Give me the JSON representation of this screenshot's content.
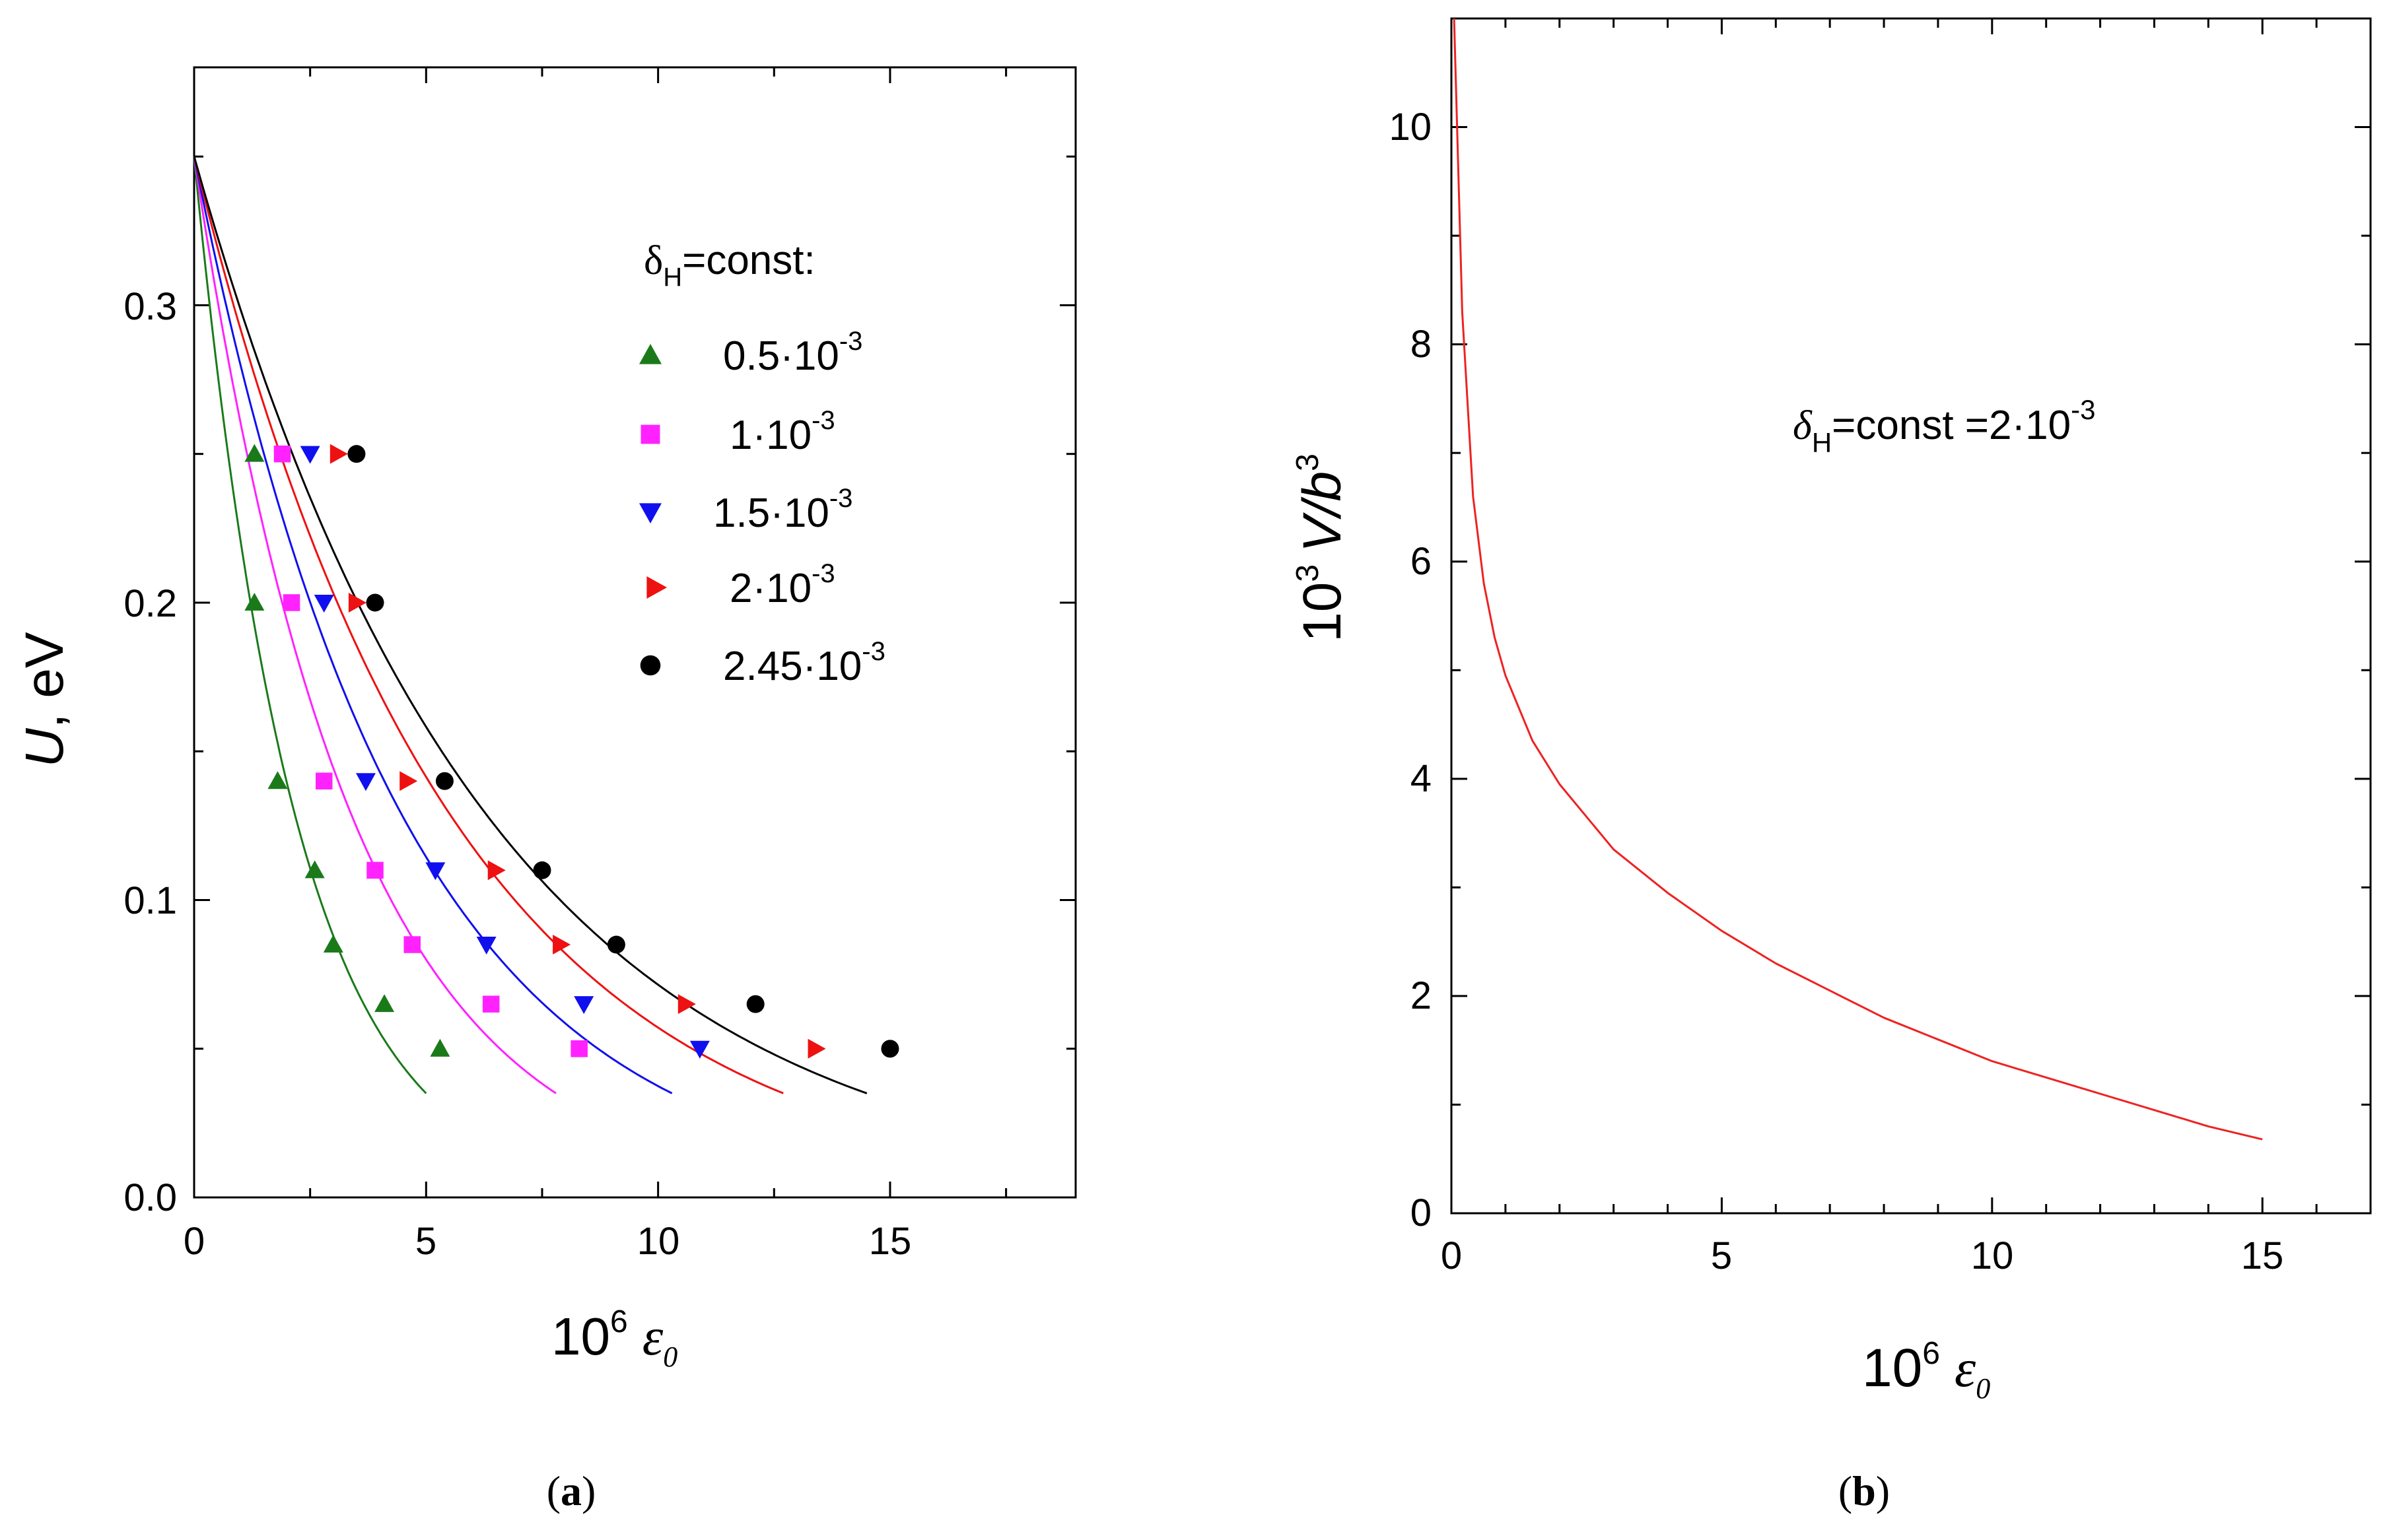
{
  "chart_data": [
    {
      "type": "scatter",
      "panel_label_open": "(",
      "panel_label": "a",
      "panel_label_close": ")",
      "xlabel": "10",
      "xlabel_exp": "6",
      "xlabel_var": "ε",
      "xlabel_sub": "0",
      "ylabel_var": "U",
      "ylabel_rest": ", eV",
      "xlim": [
        0,
        19
      ],
      "ylim": [
        0,
        0.38
      ],
      "xticks": [
        0,
        5,
        10,
        15
      ],
      "xtick_labels": [
        "0",
        "5",
        "10",
        "15"
      ],
      "yticks": [
        0.0,
        0.1,
        0.2,
        0.3
      ],
      "ytick_labels": [
        "0.0",
        "0.1",
        "0.2",
        "0.3"
      ],
      "legend_title_main": "δ",
      "legend_title_sub": "H",
      "legend_title_rest": "=const:",
      "legend_position": "top-right",
      "series": [
        {
          "name": "0.5·10-3",
          "label_base": "0.5·10",
          "label_exp": "-3",
          "marker": "triangle-up",
          "color": "#1a7a1a",
          "x": [
            1.3,
            1.3,
            1.8,
            2.6,
            3.0,
            4.1,
            5.3
          ],
          "y": [
            0.25,
            0.2,
            0.14,
            0.11,
            0.085,
            0.065,
            0.05
          ],
          "curve_x_end": 5.0
        },
        {
          "name": "1·10-3",
          "label_base": "1·10",
          "label_exp": "-3",
          "marker": "square",
          "color": "#ff22ff",
          "x": [
            1.9,
            2.1,
            2.8,
            3.9,
            4.7,
            6.4,
            8.3
          ],
          "y": [
            0.25,
            0.2,
            0.14,
            0.11,
            0.085,
            0.065,
            0.05
          ],
          "curve_x_end": 7.8
        },
        {
          "name": "1.5·10-3",
          "label_base": "1.5·10",
          "label_exp": "-3",
          "marker": "triangle-down",
          "color": "#1010ee",
          "x": [
            2.5,
            2.8,
            3.7,
            5.2,
            6.3,
            8.4,
            10.9
          ],
          "y": [
            0.25,
            0.2,
            0.14,
            0.11,
            0.085,
            0.065,
            0.05
          ],
          "curve_x_end": 10.3
        },
        {
          "name": "2·10-3",
          "label_base": "2·10",
          "label_exp": "-3",
          "marker": "triangle-right",
          "color": "#ee1111",
          "x": [
            3.1,
            3.5,
            4.6,
            6.5,
            7.9,
            10.6,
            13.4
          ],
          "y": [
            0.25,
            0.2,
            0.14,
            0.11,
            0.085,
            0.065,
            0.05
          ],
          "curve_x_end": 12.7
        },
        {
          "name": "2.45·10-3",
          "label_base": "2.45·10",
          "label_exp": "-3",
          "marker": "circle",
          "color": "#000000",
          "x": [
            3.5,
            3.9,
            5.4,
            7.5,
            9.1,
            12.1,
            15.0
          ],
          "y": [
            0.25,
            0.2,
            0.14,
            0.11,
            0.085,
            0.065,
            0.05
          ],
          "curve_x_end": 14.5
        }
      ],
      "curve_y0": 0.35
    },
    {
      "type": "line",
      "panel_label_open": "(",
      "panel_label": "b",
      "panel_label_close": ")",
      "xlabel": "10",
      "xlabel_exp": "6",
      "xlabel_var": "ε",
      "xlabel_sub": "0",
      "ylabel_pre": "10",
      "ylabel_pre_exp": "3",
      "ylabel_var": "V/b",
      "ylabel_var_exp": "3",
      "xlim": [
        0,
        17
      ],
      "ylim": [
        0,
        11
      ],
      "xticks": [
        0,
        5,
        10,
        15
      ],
      "xtick_labels": [
        "0",
        "5",
        "10",
        "15"
      ],
      "yticks": [
        0,
        2,
        4,
        6,
        8,
        10
      ],
      "ytick_labels": [
        "0",
        "2",
        "4",
        "6",
        "8",
        "10"
      ],
      "annotation_main": "δ",
      "annotation_sub": "H",
      "annotation_rest": "=const =2·10",
      "annotation_exp": "-3",
      "series": [
        {
          "name": "V/b3",
          "color": "#ee2222",
          "x": [
            0.05,
            0.2,
            0.4,
            0.6,
            0.8,
            1.0,
            1.5,
            2.0,
            3.0,
            4.0,
            5.0,
            6.0,
            7.0,
            8.0,
            9.0,
            10.0,
            11.0,
            12.0,
            13.0,
            14.0,
            15.0
          ],
          "y": [
            11.0,
            8.3,
            6.6,
            5.8,
            5.3,
            4.95,
            4.35,
            3.95,
            3.35,
            2.95,
            2.6,
            2.3,
            2.05,
            1.8,
            1.6,
            1.4,
            1.25,
            1.1,
            0.95,
            0.8,
            0.68
          ]
        }
      ]
    }
  ]
}
